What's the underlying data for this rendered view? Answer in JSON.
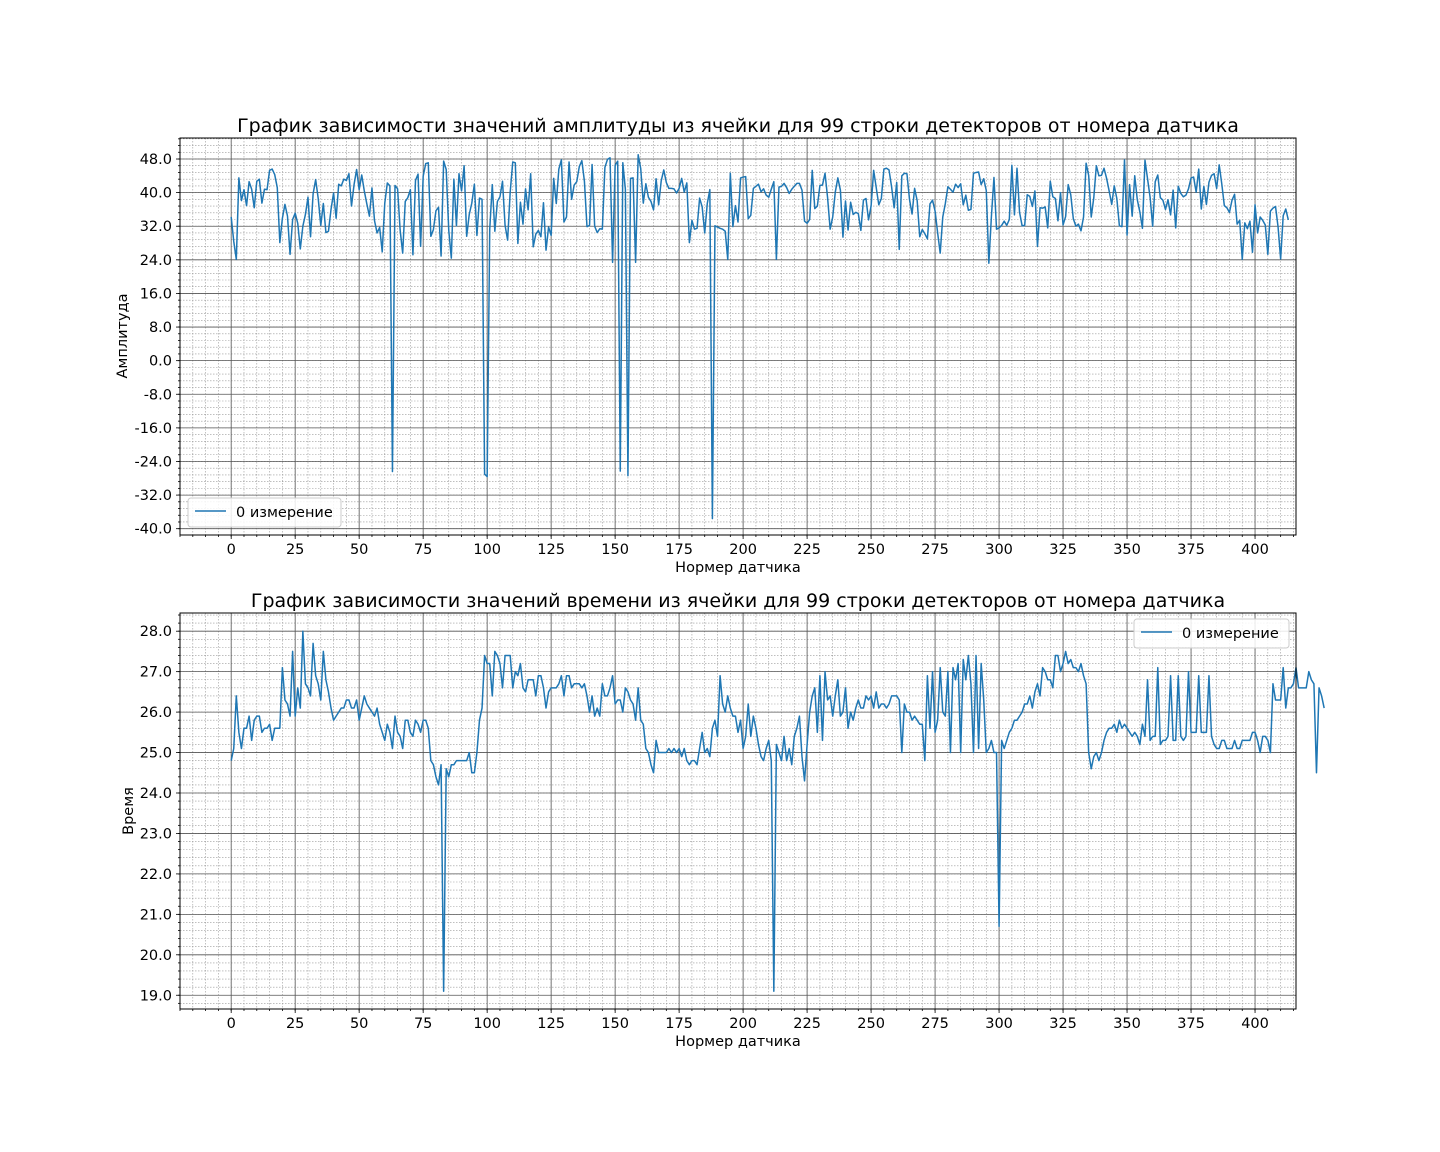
{
  "line_color": "#1f77b4",
  "chart_data": [
    {
      "type": "line",
      "title": "График зависимости значений амплитуды из ячейки для 99 строки детекторов от номера датчика",
      "xlabel": "Нормер датчика",
      "ylabel": "Амплитуда",
      "xlim": [
        -20,
        416
      ],
      "ylim": [
        -41.5,
        53.0
      ],
      "xticks": [
        0,
        25,
        50,
        75,
        100,
        125,
        150,
        175,
        200,
        225,
        250,
        275,
        300,
        325,
        350,
        375,
        400
      ],
      "xtick_labels": [
        "0",
        "25",
        "50",
        "75",
        "100",
        "125",
        "150",
        "175",
        "200",
        "225",
        "250",
        "275",
        "300",
        "325",
        "350",
        "375",
        "400"
      ],
      "yticks": [
        -40,
        -32,
        -24,
        -16,
        -8,
        0,
        8,
        16,
        24,
        32,
        40,
        48
      ],
      "ytick_labels": [
        "-40.0",
        "-32.0",
        "-24.0",
        "-16.0",
        "-8.0",
        "0.0",
        "8.0",
        "16.0",
        "24.0",
        "32.0",
        "40.0",
        "48.0"
      ],
      "grid": true,
      "minor_grid": true,
      "legend_position": "lower-left",
      "series": [
        {
          "name": "0 измерение",
          "x_start": 0,
          "x_step": 1,
          "values": [
            34.2,
            28.4,
            24.1,
            43.5,
            38.1,
            40.7,
            36.9,
            42.6,
            40.8,
            36.4,
            42.7,
            43.2,
            37.5,
            40.8,
            40.7,
            45.3,
            45.6,
            44.3,
            41.2,
            28.1,
            33.9,
            37.2,
            34.4,
            25.3,
            33.6,
            35.1,
            32.7,
            26.6,
            32.0,
            34.8,
            38.9,
            29.5,
            39.7,
            43.1,
            38.6,
            32.2,
            37.4,
            30.5,
            30.8,
            36.0,
            39.9,
            33.9,
            42.0,
            41.6,
            43.2,
            42.9,
            44.5,
            36.8,
            41.9,
            45.5,
            40.7,
            44.2,
            40.4,
            37.3,
            34.4,
            41.1,
            33.3,
            30.4,
            31.7,
            25.9,
            37.5,
            42.3,
            41.6,
            -26.4,
            41.7,
            40.9,
            31.1,
            25.6,
            37.9,
            38.8,
            40.7,
            25.2,
            42.9,
            44.4,
            27.2,
            43.9,
            46.9,
            47.1,
            29.6,
            31.2,
            35.7,
            36.5,
            24.9,
            47.5,
            45.5,
            31.0,
            24.4,
            43.2,
            32.1,
            44.5,
            40.4,
            46.4,
            29.6,
            34.8,
            37.5,
            42.0,
            29.8,
            38.7,
            38.4,
            -27.0,
            -27.6,
            31.2,
            41.9,
            30.8,
            37.9,
            39.0,
            42.7,
            32.2,
            28.7,
            40.1,
            47.3,
            47.1,
            27.9,
            37.7,
            32.5,
            40.9,
            35.9,
            44.5,
            27.1,
            30.1,
            31.0,
            29.5,
            37.6,
            26.3,
            31.8,
            29.8,
            43.4,
            37.4,
            45.6,
            47.8,
            33.0,
            34.2,
            47.3,
            38.4,
            41.8,
            42.6,
            46.2,
            47.6,
            42.7,
            31.9,
            32.2,
            46.7,
            32.0,
            30.5,
            31.4,
            31.3,
            46.0,
            47.9,
            48.3,
            23.4,
            46.5,
            47.5,
            -26.3,
            47.1,
            40.8,
            -27.4,
            43.4,
            43.5,
            23.4,
            49.0,
            45.7,
            37.5,
            42.1,
            38.9,
            37.9,
            35.9,
            43.3,
            37.1,
            42.8,
            45.4,
            42.4,
            41.0,
            41.0,
            40.9,
            39.9,
            41.0,
            43.4,
            40.1,
            42.3,
            28.1,
            33.4,
            31.3,
            31.5,
            38.7,
            36.6,
            30.4,
            37.4,
            40.7,
            -37.6,
            32.1,
            31.8,
            31.5,
            31.3,
            30.8,
            24.1,
            44.6,
            31.9,
            36.9,
            33.0,
            43.5,
            43.7,
            43.8,
            33.8,
            34.6,
            41.0,
            41.5,
            42.0,
            40.2,
            40.9,
            39.4,
            38.9,
            40.8,
            42.6,
            24.1,
            41.3,
            41.5,
            42.2,
            41.2,
            39.8,
            40.8,
            41.5,
            42.2,
            42.2,
            40.6,
            33.2,
            32.7,
            33.6,
            45.3,
            36.2,
            36.8,
            41.7,
            41.8,
            44.6,
            38.8,
            31.3,
            34.2,
            40.1,
            43.5,
            40.6,
            29.4,
            38.0,
            31.1,
            37.7,
            34.8,
            35.3,
            35.0,
            31.0,
            38.2,
            38.6,
            33.5,
            36.8,
            45.3,
            41.2,
            37.1,
            38.6,
            45.6,
            45.8,
            45.4,
            41.4,
            36.4,
            42.4,
            26.5,
            44.0,
            44.6,
            44.5,
            38.4,
            34.9,
            41.0,
            38.1,
            29.5,
            31.2,
            30.2,
            29.0,
            37.3,
            38.2,
            35.6,
            30.4,
            25.6,
            34.2,
            37.4,
            41.4,
            40.8,
            40.1,
            42.0,
            41.2,
            42.1,
            37.1,
            39.4,
            35.8,
            36.0,
            44.6,
            44.8,
            44.9,
            41.9,
            43.3,
            40.5,
            23.2,
            34.3,
            43.6,
            31.3,
            31.6,
            32.2,
            33.2,
            32.2,
            33.6,
            46.5,
            34.7,
            45.8,
            35.3,
            32.1,
            32.2,
            39.5,
            39.1,
            36.7,
            40.4,
            27.2,
            36.4,
            36.3,
            36.6,
            31.6,
            42.7,
            39.0,
            38.6,
            33.3,
            40.0,
            32.3,
            34.3,
            41.9,
            39.5,
            33.8,
            32.0,
            32.5,
            30.9,
            34.2,
            47.0,
            44.1,
            34.2,
            38.8,
            46.4,
            44.0,
            44.1,
            45.8,
            43.4,
            40.4,
            37.2,
            41.6,
            38.6,
            32.1,
            31.9,
            47.8,
            29.9,
            41.9,
            34.4,
            44.0,
            38.3,
            35.4,
            31.5,
            47.7,
            43.3,
            38.9,
            32.0,
            42.6,
            44.2,
            38.8,
            38.2,
            36.0,
            38.3,
            34.7,
            40.6,
            31.6,
            41.5,
            39.8,
            39.0,
            39.4,
            40.9,
            43.5,
            43.7,
            40.1,
            45.6,
            36.1,
            41.5,
            37.2,
            42.5,
            44.1,
            44.5,
            41.0,
            46.6,
            42.1,
            36.9,
            36.4,
            35.3,
            38.2,
            39.6,
            32.5,
            33.4,
            24.1,
            32.8,
            31.4,
            33.2,
            25.8,
            37.1,
            30.4,
            34.2,
            33.4,
            32.3,
            25.3,
            35.6,
            36.3,
            36.7,
            31.8,
            24.2,
            34.5,
            36.1,
            33.5
          ]
        }
      ]
    },
    {
      "type": "line",
      "title": "График зависимости значений времени из ячейки для 99 строки детекторов от номера датчика",
      "xlabel": "Нормер датчика",
      "ylabel": "Время",
      "xlim": [
        -20,
        416
      ],
      "ylim": [
        18.66,
        28.45
      ],
      "xticks": [
        0,
        25,
        50,
        75,
        100,
        125,
        150,
        175,
        200,
        225,
        250,
        275,
        300,
        325,
        350,
        375,
        400
      ],
      "xtick_labels": [
        "0",
        "25",
        "50",
        "75",
        "100",
        "125",
        "150",
        "175",
        "200",
        "225",
        "250",
        "275",
        "300",
        "325",
        "350",
        "375",
        "400"
      ],
      "yticks": [
        19,
        20,
        21,
        22,
        23,
        24,
        25,
        26,
        27,
        28
      ],
      "ytick_labels": [
        "19.0",
        "20.0",
        "21.0",
        "22.0",
        "23.0",
        "24.0",
        "25.0",
        "26.0",
        "27.0",
        "28.0"
      ],
      "grid": true,
      "minor_grid": true,
      "legend_position": "upper-right",
      "series": [
        {
          "name": "0 измерение",
          "x_start": 0,
          "x_step": 1,
          "values": [
            24.8,
            25.1,
            26.4,
            25.5,
            25.1,
            25.6,
            25.6,
            25.9,
            25.3,
            25.8,
            25.9,
            25.9,
            25.5,
            25.6,
            25.6,
            25.7,
            25.3,
            25.6,
            25.6,
            25.6,
            27.1,
            26.3,
            26.2,
            25.9,
            27.5,
            25.9,
            26.6,
            26.1,
            28.0,
            26.7,
            26.6,
            26.4,
            27.7,
            26.9,
            26.7,
            26.3,
            27.5,
            26.8,
            26.5,
            26.1,
            25.8,
            25.9,
            26.0,
            26.1,
            26.1,
            26.3,
            26.3,
            26.1,
            26.1,
            26.3,
            25.8,
            26.1,
            26.4,
            26.2,
            26.1,
            26.0,
            25.9,
            26.1,
            25.7,
            25.5,
            25.3,
            25.7,
            25.5,
            25.1,
            25.9,
            25.5,
            25.4,
            25.1,
            25.8,
            25.8,
            25.5,
            25.4,
            25.8,
            25.7,
            25.5,
            25.8,
            25.8,
            25.6,
            24.8,
            24.7,
            24.4,
            24.2,
            24.7,
            19.1,
            24.6,
            24.4,
            24.7,
            24.7,
            24.8,
            24.8,
            24.8,
            24.8,
            24.8,
            25.0,
            24.5,
            24.5,
            25.0,
            25.8,
            26.1,
            27.4,
            27.2,
            27.2,
            26.4,
            27.5,
            27.4,
            27.2,
            26.6,
            27.4,
            27.4,
            27.4,
            26.6,
            27.0,
            26.9,
            27.2,
            26.6,
            26.5,
            26.8,
            26.8,
            26.8,
            26.4,
            26.9,
            26.9,
            26.6,
            26.1,
            26.5,
            26.6,
            26.6,
            26.6,
            26.7,
            26.9,
            26.4,
            26.9,
            26.9,
            26.6,
            26.7,
            26.7,
            26.7,
            26.6,
            26.7,
            26.4,
            26.0,
            26.4,
            25.9,
            26.1,
            25.9,
            26.7,
            26.4,
            26.4,
            26.6,
            26.9,
            26.2,
            26.3,
            26.3,
            26.0,
            26.6,
            26.5,
            26.3,
            26.2,
            25.8,
            26.6,
            25.8,
            25.7,
            25.1,
            25.0,
            24.7,
            24.5,
            25.3,
            25.0,
            25.0,
            25.0,
            25.0,
            25.1,
            25.0,
            25.1,
            25.0,
            25.1,
            24.9,
            25.1,
            24.8,
            24.7,
            24.8,
            24.8,
            24.7,
            25.1,
            25.5,
            25.0,
            25.1,
            24.9,
            25.6,
            25.8,
            25.4,
            26.9,
            26.2,
            26.0,
            26.4,
            26.1,
            25.9,
            25.9,
            25.5,
            25.8,
            25.1,
            25.4,
            26.2,
            25.4,
            25.9,
            25.6,
            25.2,
            24.9,
            24.8,
            25.1,
            25.3,
            24.8,
            19.1,
            25.2,
            25.0,
            24.8,
            25.4,
            24.8,
            25.1,
            24.7,
            25.4,
            25.6,
            25.9,
            24.9,
            24.3,
            25.2,
            26.0,
            26.4,
            26.6,
            25.5,
            26.9,
            25.3,
            27.0,
            26.3,
            26.4,
            25.9,
            26.4,
            26.8,
            25.9,
            26.0,
            26.6,
            25.6,
            26.0,
            25.8,
            26.1,
            26.3,
            26.1,
            26.1,
            26.4,
            26.3,
            26.4,
            26.1,
            26.5,
            26.1,
            26.2,
            26.2,
            26.1,
            26.2,
            26.4,
            26.4,
            26.4,
            26.3,
            25.0,
            26.2,
            26.0,
            26.0,
            25.8,
            25.9,
            25.8,
            25.7,
            25.7,
            24.8,
            26.9,
            25.6,
            27.0,
            25.5,
            25.8,
            27.1,
            26.0,
            25.9,
            27.0,
            25.0,
            27.1,
            26.8,
            27.2,
            25.0,
            27.3,
            26.8,
            27.4,
            26.7,
            25.0,
            27.4,
            25.1,
            27.2,
            26.3,
            25.0,
            25.1,
            25.3,
            25.0,
            25.0,
            20.7,
            25.3,
            25.1,
            25.3,
            25.5,
            25.6,
            25.8,
            25.8,
            25.9,
            26.0,
            26.2,
            26.2,
            26.4,
            26.1,
            26.5,
            26.7,
            26.4,
            27.1,
            27.0,
            26.8,
            26.8,
            26.6,
            27.4,
            27.4,
            27.0,
            27.2,
            27.5,
            27.2,
            27.3,
            27.1,
            27.1,
            27.0,
            27.2,
            26.9,
            26.7,
            25.0,
            24.6,
            24.9,
            25.0,
            24.8,
            25.0,
            25.3,
            25.5,
            25.6,
            25.6,
            25.7,
            25.5,
            25.8,
            25.6,
            25.7,
            25.6,
            25.5,
            25.4,
            25.5,
            25.4,
            25.2,
            25.7,
            25.4,
            26.8,
            25.3,
            25.4,
            25.4,
            27.1,
            25.2,
            25.3,
            25.3,
            25.4,
            26.9,
            25.3,
            25.3,
            26.9,
            25.4,
            25.3,
            25.4,
            27.0,
            25.5,
            25.5,
            25.5,
            26.9,
            25.5,
            25.5,
            25.5,
            26.9,
            25.4,
            25.2,
            25.1,
            25.1,
            25.3,
            25.3,
            25.1,
            25.1,
            25.1,
            25.3,
            25.1,
            25.1,
            25.3,
            25.3,
            25.3,
            25.3,
            25.5,
            25.5,
            25.3,
            25.0,
            25.4,
            25.4,
            25.3,
            25.0,
            26.7,
            26.3,
            26.3,
            26.3,
            27.1,
            26.1,
            26.6,
            26.6,
            26.7,
            27.1,
            26.6,
            26.6,
            26.6,
            26.6,
            27.0,
            26.8,
            26.7,
            24.5,
            26.6,
            26.4,
            26.1
          ]
        }
      ]
    }
  ]
}
